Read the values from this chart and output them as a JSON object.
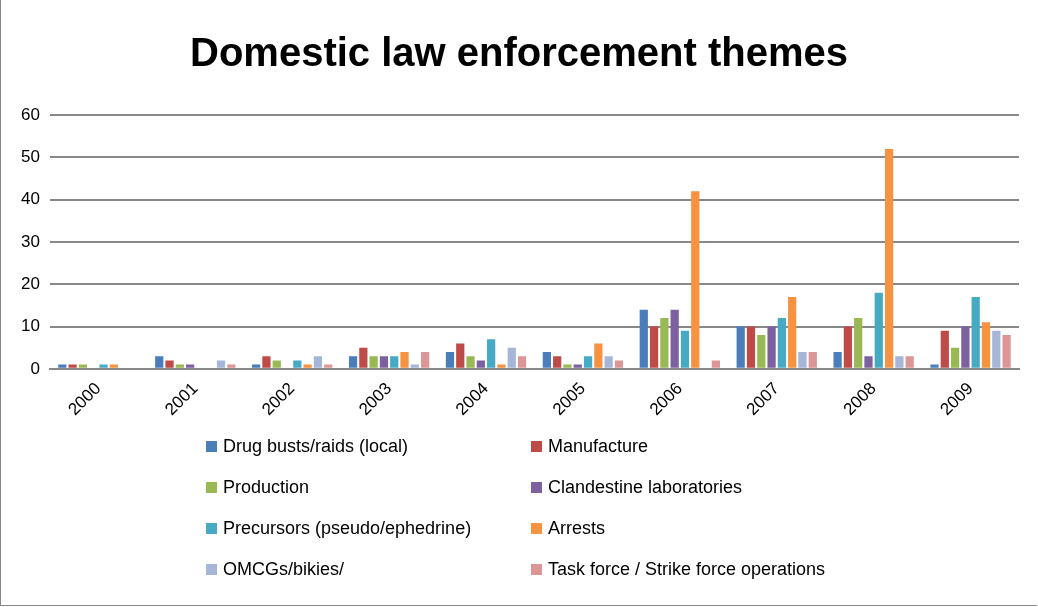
{
  "chart_data": {
    "type": "bar",
    "title": "Domestic law enforcement themes",
    "categories": [
      "2000",
      "2001",
      "2002",
      "2003",
      "2004",
      "2005",
      "2006",
      "2007",
      "2008",
      "2009"
    ],
    "series": [
      {
        "name": "Drug busts/raids (local)",
        "color": "#4a7ebb",
        "values": [
          1,
          3,
          1,
          3,
          4,
          4,
          14,
          10,
          4,
          1
        ]
      },
      {
        "name": "Manufacture",
        "color": "#be4b48",
        "values": [
          1,
          2,
          3,
          5,
          6,
          3,
          10,
          10,
          10,
          9
        ]
      },
      {
        "name": "Production",
        "color": "#98b954",
        "values": [
          1,
          1,
          2,
          3,
          3,
          1,
          12,
          8,
          12,
          5
        ]
      },
      {
        "name": "Clandestine laboratories",
        "color": "#7d60a0",
        "values": [
          0,
          1,
          0,
          3,
          2,
          1,
          14,
          10,
          3,
          10
        ]
      },
      {
        "name": "Precursors (pseudo/ephedrine)",
        "color": "#46aac5",
        "values": [
          1,
          0,
          2,
          3,
          7,
          3,
          9,
          12,
          18,
          17
        ]
      },
      {
        "name": "Arrests",
        "color": "#f69240",
        "values": [
          1,
          0,
          1,
          4,
          1,
          6,
          42,
          17,
          52,
          11
        ]
      },
      {
        "name": "OMCGs/bikies/",
        "color": "#a5b6d9",
        "values": [
          0,
          2,
          3,
          1,
          5,
          3,
          0,
          4,
          3,
          9
        ]
      },
      {
        "name": "Task force / Strike force operations",
        "color": "#dc9695",
        "values": [
          0,
          1,
          1,
          4,
          3,
          2,
          2,
          4,
          3,
          8
        ]
      }
    ],
    "ylim": [
      0,
      60
    ],
    "yticks": [
      0,
      10,
      20,
      30,
      40,
      50,
      60
    ],
    "grid": "y",
    "legend": "bottom"
  }
}
